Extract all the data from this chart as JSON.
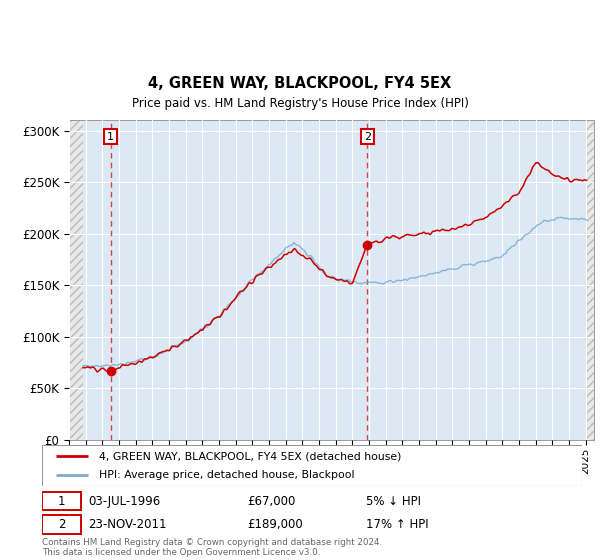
{
  "title": "4, GREEN WAY, BLACKPOOL, FY4 5EX",
  "subtitle": "Price paid vs. HM Land Registry's House Price Index (HPI)",
  "xlim": [
    1994.0,
    2025.5
  ],
  "ylim": [
    0,
    310000
  ],
  "yticks": [
    0,
    50000,
    100000,
    150000,
    200000,
    250000,
    300000
  ],
  "ytick_labels": [
    "£0",
    "£50K",
    "£100K",
    "£150K",
    "£200K",
    "£250K",
    "£300K"
  ],
  "sale1_year": 1996.5,
  "sale1_price": 67000,
  "sale2_year": 2011.9,
  "sale2_price": 189000,
  "hatch_left_end": 1994.83,
  "hatch_right_start": 2025.08,
  "legend_line1": "4, GREEN WAY, BLACKPOOL, FY4 5EX (detached house)",
  "legend_line2": "HPI: Average price, detached house, Blackpool",
  "ann1_date": "03-JUL-1996",
  "ann1_price": "£67,000",
  "ann1_hpi": "5% ↓ HPI",
  "ann2_date": "23-NOV-2011",
  "ann2_price": "£189,000",
  "ann2_hpi": "17% ↑ HPI",
  "footer": "Contains HM Land Registry data © Crown copyright and database right 2024.\nThis data is licensed under the Open Government Licence v3.0.",
  "bg_color": "#dce9f5",
  "red_line_color": "#cc0000",
  "blue_line_color": "#7aabcf"
}
